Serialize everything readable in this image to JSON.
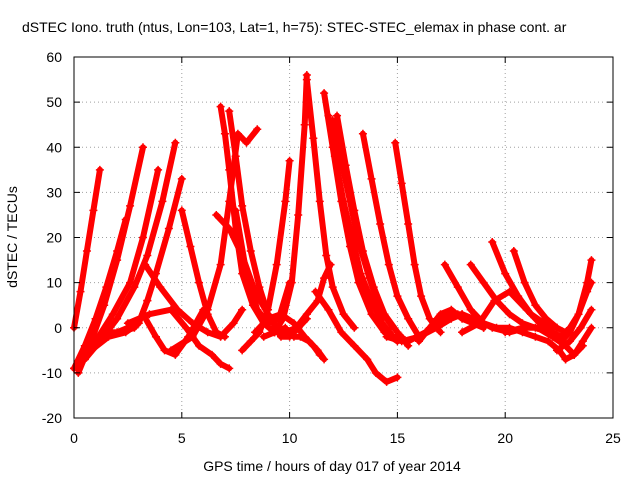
{
  "chart_data": {
    "type": "scatter",
    "title": "dSTEC Iono. truth (ntus, Lon=103, Lat=1, h=75): STEC-STEC_elemax in phase cont. ar",
    "xlabel": "GPS time / hours of day 017 of year 2014",
    "ylabel": "dSTEC  / TECUs",
    "xlim": [
      0,
      25
    ],
    "ylim": [
      -20,
      60
    ],
    "xticks": [
      "0",
      "5",
      "10",
      "15",
      "20",
      "25"
    ],
    "yticks": [
      "60",
      "50",
      "40",
      "30",
      "20",
      "10",
      "0",
      "-10",
      "-20"
    ],
    "grid": true,
    "series_color": "#ff0000",
    "series": [
      {
        "x": [
          0.0,
          0.3,
          0.6,
          0.9,
          1.2
        ],
        "y": [
          0,
          8,
          17,
          26,
          35
        ]
      },
      {
        "x": [
          0.0,
          0.5,
          1.0,
          1.5,
          2.0,
          2.4
        ],
        "y": [
          -9,
          -4,
          2,
          9,
          17,
          24
        ]
      },
      {
        "x": [
          0.2,
          0.8,
          1.4,
          2.0,
          2.6,
          3.2
        ],
        "y": [
          -10,
          -3,
          5,
          15,
          27,
          40
        ]
      },
      {
        "x": [
          0.3,
          1.0,
          1.8,
          2.6,
          3.2,
          3.9
        ],
        "y": [
          -8,
          -3,
          3,
          10,
          20,
          35
        ]
      },
      {
        "x": [
          0.5,
          1.2,
          2.0,
          2.8,
          3.4,
          4.1,
          4.7
        ],
        "y": [
          -7,
          -3,
          2,
          9,
          16,
          28,
          41
        ]
      },
      {
        "x": [
          0.0,
          0.8,
          1.6,
          2.4,
          3.0,
          3.4,
          3.8,
          4.4,
          5.0
        ],
        "y": [
          -9,
          -5,
          -2,
          -1,
          1,
          6,
          12,
          22,
          33
        ]
      },
      {
        "x": [
          0.5,
          1.0,
          1.5,
          2.0,
          2.5,
          3.0,
          3.4
        ],
        "y": [
          -7,
          -3,
          -1,
          -1,
          0,
          1,
          6
        ]
      },
      {
        "x": [
          1.5,
          2.2,
          2.8,
          3.2,
          3.8,
          4.2,
          4.7,
          5.3,
          6.0
        ],
        "y": [
          -2,
          -1,
          0,
          3,
          -2,
          -5,
          -6,
          -2,
          4
        ]
      },
      {
        "x": [
          3.3,
          4.0,
          4.8,
          5.5,
          6.2,
          6.8,
          7.4,
          7.8
        ],
        "y": [
          14,
          9,
          4,
          1,
          -1,
          -2,
          1,
          4
        ]
      },
      {
        "x": [
          2.5,
          3.5,
          4.5,
          5.2,
          5.8,
          6.4,
          6.8,
          7.2
        ],
        "y": [
          1,
          3,
          4,
          0,
          -4,
          -6,
          -8,
          -9
        ]
      },
      {
        "x": [
          4.5,
          5.5,
          6.2,
          6.8,
          7.2,
          7.6,
          8.0,
          8.5
        ],
        "y": [
          -5,
          -2,
          4,
          14,
          28,
          43,
          41,
          44
        ]
      },
      {
        "x": [
          5.0,
          5.4,
          5.8,
          6.2,
          6.6,
          7.0
        ],
        "y": [
          26,
          18,
          10,
          3,
          -1,
          -2
        ]
      },
      {
        "x": [
          6.8,
          7.0,
          7.2,
          7.5,
          7.8,
          8.3,
          8.8,
          9.3,
          9.8
        ],
        "y": [
          49,
          43,
          35,
          22,
          12,
          5,
          1,
          -1,
          0
        ]
      },
      {
        "x": [
          7.2,
          7.5,
          7.8,
          8.2,
          8.6,
          9.0,
          9.4
        ],
        "y": [
          48,
          38,
          27,
          17,
          9,
          3,
          0
        ]
      },
      {
        "x": [
          6.6,
          7.2,
          7.8,
          8.4,
          9.0,
          9.6,
          10.0,
          10.4,
          10.8
        ],
        "y": [
          25,
          22,
          16,
          8,
          3,
          -2,
          -2,
          0,
          2
        ]
      },
      {
        "x": [
          7.5,
          8.0,
          8.5,
          9.0,
          9.5,
          10.0
        ],
        "y": [
          26,
          12,
          4,
          1,
          2,
          10
        ]
      },
      {
        "x": [
          7.8,
          8.2,
          8.6,
          9.0,
          9.4,
          9.8,
          10.0
        ],
        "y": [
          -5,
          -3,
          -1,
          4,
          14,
          28,
          37
        ]
      },
      {
        "x": [
          8.4,
          9.0,
          9.6,
          10.2,
          10.7,
          11.1,
          11.4
        ],
        "y": [
          -1,
          2,
          3,
          1,
          -2,
          -4,
          -6
        ]
      },
      {
        "x": [
          8.8,
          9.3,
          9.7,
          10.1,
          10.4,
          10.7,
          10.8
        ],
        "y": [
          -2,
          -1,
          2,
          10,
          25,
          45,
          56
        ]
      },
      {
        "x": [
          9.3,
          9.8,
          10.3,
          10.8,
          11.3,
          11.6,
          11.9
        ],
        "y": [
          -1,
          -1,
          0,
          3,
          6,
          11,
          14
        ]
      },
      {
        "x": [
          10.8,
          11.1,
          11.4,
          11.7,
          12.0,
          12.5,
          13.0
        ],
        "y": [
          55,
          42,
          28,
          16,
          9,
          3,
          0
        ]
      },
      {
        "x": [
          10.2,
          10.5,
          10.9,
          11.3,
          11.6
        ],
        "y": [
          -2,
          -2,
          -3,
          -5,
          -7
        ]
      },
      {
        "x": [
          11.6,
          12.0,
          12.4,
          12.8,
          13.2,
          13.8,
          14.4,
          15.0
        ],
        "y": [
          52,
          40,
          28,
          18,
          10,
          3,
          -1,
          -3
        ]
      },
      {
        "x": [
          11.8,
          12.1,
          12.5,
          12.9,
          13.3,
          13.8,
          14.3,
          14.8,
          15.2
        ],
        "y": [
          47,
          38,
          28,
          20,
          12,
          6,
          1,
          -2,
          -2
        ]
      },
      {
        "x": [
          12.0,
          12.4,
          12.8,
          13.2,
          13.7,
          14.2,
          14.8
        ],
        "y": [
          46,
          37,
          28,
          19,
          11,
          4,
          0
        ]
      },
      {
        "x": [
          12.2,
          12.6,
          13.0,
          13.4,
          13.9,
          14.4,
          15.0,
          15.5
        ],
        "y": [
          47,
          36,
          26,
          17,
          9,
          3,
          -1,
          -4
        ]
      },
      {
        "x": [
          11.2,
          11.8,
          12.4,
          13.0,
          13.6,
          14.0,
          14.5,
          15.0
        ],
        "y": [
          8,
          4,
          -1,
          -4,
          -7,
          -10,
          -12,
          -11
        ]
      },
      {
        "x": [
          13.4,
          13.8,
          14.2,
          14.6,
          15.0,
          15.5,
          16.0
        ],
        "y": [
          43,
          33,
          23,
          14,
          7,
          2,
          -2
        ]
      },
      {
        "x": [
          14.9,
          15.2,
          15.5,
          15.8,
          16.1,
          16.5,
          17.0
        ],
        "y": [
          41,
          32,
          23,
          14,
          7,
          2,
          -1
        ]
      },
      {
        "x": [
          14.5,
          15.2,
          16.0,
          16.8,
          17.5,
          18.0,
          18.5
        ],
        "y": [
          -2,
          -3,
          -2,
          0,
          2,
          3,
          2
        ]
      },
      {
        "x": [
          15.5,
          16.3,
          17.0,
          17.8,
          18.6,
          19.4,
          20.2,
          21.0
        ],
        "y": [
          -3,
          -1,
          2,
          3,
          2,
          0,
          -1,
          0
        ]
      },
      {
        "x": [
          16.0,
          16.5,
          17.0,
          17.5,
          18.0,
          18.5,
          19.0
        ],
        "y": [
          -3,
          0,
          3,
          4,
          2,
          1,
          0
        ]
      },
      {
        "x": [
          17.0,
          17.5,
          18.0,
          18.5,
          19.0
        ],
        "y": [
          2,
          3,
          3,
          1,
          0
        ]
      },
      {
        "x": [
          17.2,
          17.8,
          18.4,
          19.0,
          19.6,
          20.2,
          20.8,
          21.4,
          22.0,
          22.5,
          22.8
        ],
        "y": [
          14,
          9,
          4,
          1,
          0,
          0,
          -1,
          -2,
          -3,
          -5,
          -7
        ]
      },
      {
        "x": [
          18.4,
          19.0,
          19.6,
          20.2,
          20.8,
          21.4,
          22.0
        ],
        "y": [
          14,
          10,
          6,
          3,
          1,
          0,
          -1
        ]
      },
      {
        "x": [
          19.4,
          20.0,
          20.6,
          21.2,
          21.8,
          22.4
        ],
        "y": [
          19,
          12,
          7,
          3,
          1,
          0
        ]
      },
      {
        "x": [
          20.4,
          20.9,
          21.4,
          21.9,
          22.4,
          22.8
        ],
        "y": [
          17,
          10,
          5,
          2,
          0,
          -1
        ]
      },
      {
        "x": [
          18.0,
          18.8,
          19.5,
          20.2,
          21.0,
          21.8,
          22.6
        ],
        "y": [
          -1,
          1,
          6,
          8,
          4,
          0,
          -2
        ]
      },
      {
        "x": [
          20.0,
          20.8,
          21.5,
          22.2,
          22.8,
          23.2,
          23.6
        ],
        "y": [
          -1,
          0,
          0,
          -2,
          -4,
          -6,
          -4
        ]
      },
      {
        "x": [
          22.4,
          23.0,
          23.5,
          24.0
        ],
        "y": [
          -5,
          -3,
          0,
          4
        ]
      },
      {
        "x": [
          22.8,
          23.2,
          23.6,
          24.0
        ],
        "y": [
          -7,
          -6,
          -3,
          0
        ]
      },
      {
        "x": [
          22.6,
          23.0,
          23.4,
          23.8,
          24.0
        ],
        "y": [
          -2,
          0,
          3,
          8,
          10
        ]
      },
      {
        "x": [
          22.6,
          23.0,
          23.4,
          23.8,
          24.0
        ],
        "y": [
          -3,
          -1,
          3,
          10,
          15
        ]
      }
    ]
  }
}
